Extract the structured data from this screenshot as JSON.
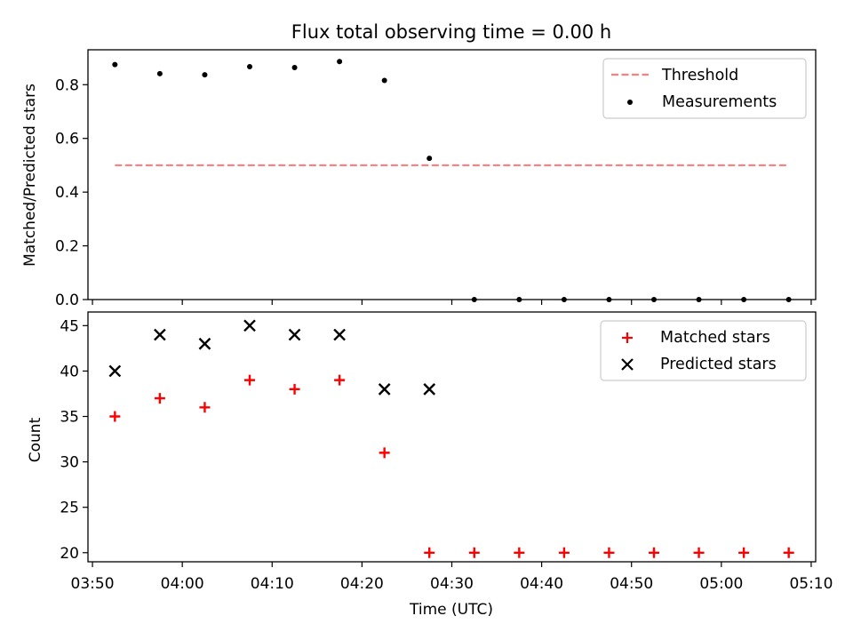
{
  "chart_data": [
    {
      "type": "scatter",
      "title": "Flux total observing time = 0.00 h",
      "xlabel": "",
      "ylabel": "Matched/Predicted stars",
      "ylim": [
        0,
        0.93
      ],
      "yticks": [
        "0.0",
        "0.2",
        "0.4",
        "0.6",
        "0.8"
      ],
      "grid": false,
      "legend_position": "upper-right",
      "series": [
        {
          "name": "Threshold",
          "kind": "line",
          "style": "dashed",
          "color": "#ff7f7f",
          "points": [
            {
              "x": "03:52:30",
              "y": 0.5
            },
            {
              "x": "05:07:30",
              "y": 0.5
            }
          ]
        },
        {
          "name": "Measurements",
          "kind": "scatter",
          "marker": "dot",
          "color": "#000000",
          "x": [
            "03:52:30",
            "03:57:30",
            "04:02:30",
            "04:07:30",
            "04:12:30",
            "04:17:30",
            "04:22:30",
            "04:27:30",
            "04:32:30",
            "04:37:30",
            "04:42:30",
            "04:47:30",
            "04:52:30",
            "04:57:30",
            "05:02:30",
            "05:07:30"
          ],
          "y": [
            0.875,
            0.841,
            0.837,
            0.867,
            0.864,
            0.886,
            0.816,
            0.526,
            0,
            0,
            0,
            0,
            0,
            0,
            0,
            0
          ]
        }
      ]
    },
    {
      "type": "scatter",
      "title": "",
      "xlabel": "Time (UTC)",
      "ylabel": "Count",
      "xlim": [
        "03:49:30",
        "05:10:30"
      ],
      "xticks": [
        "03:50",
        "04:00",
        "04:10",
        "04:20",
        "04:30",
        "04:40",
        "04:50",
        "05:00",
        "05:10"
      ],
      "ylim": [
        19,
        46.5
      ],
      "yticks": [
        "20",
        "25",
        "30",
        "35",
        "40",
        "45"
      ],
      "grid": false,
      "legend_position": "upper-right",
      "series": [
        {
          "name": "Matched stars",
          "kind": "scatter",
          "marker": "plus",
          "color": "#ff0000",
          "x": [
            "03:52:30",
            "03:57:30",
            "04:02:30",
            "04:07:30",
            "04:12:30",
            "04:17:30",
            "04:22:30",
            "04:27:30",
            "04:32:30",
            "04:37:30",
            "04:42:30",
            "04:47:30",
            "04:52:30",
            "04:57:30",
            "05:02:30",
            "05:07:30"
          ],
          "y": [
            35,
            37,
            36,
            39,
            38,
            39,
            31,
            20,
            20,
            20,
            20,
            20,
            20,
            20,
            20,
            20
          ]
        },
        {
          "name": "Predicted stars",
          "kind": "scatter",
          "marker": "cross",
          "color": "#000000",
          "x": [
            "03:52:30",
            "03:57:30",
            "04:02:30",
            "04:07:30",
            "04:12:30",
            "04:17:30",
            "04:22:30",
            "04:27:30"
          ],
          "y": [
            40,
            44,
            43,
            45,
            44,
            44,
            38,
            38
          ]
        }
      ]
    }
  ]
}
